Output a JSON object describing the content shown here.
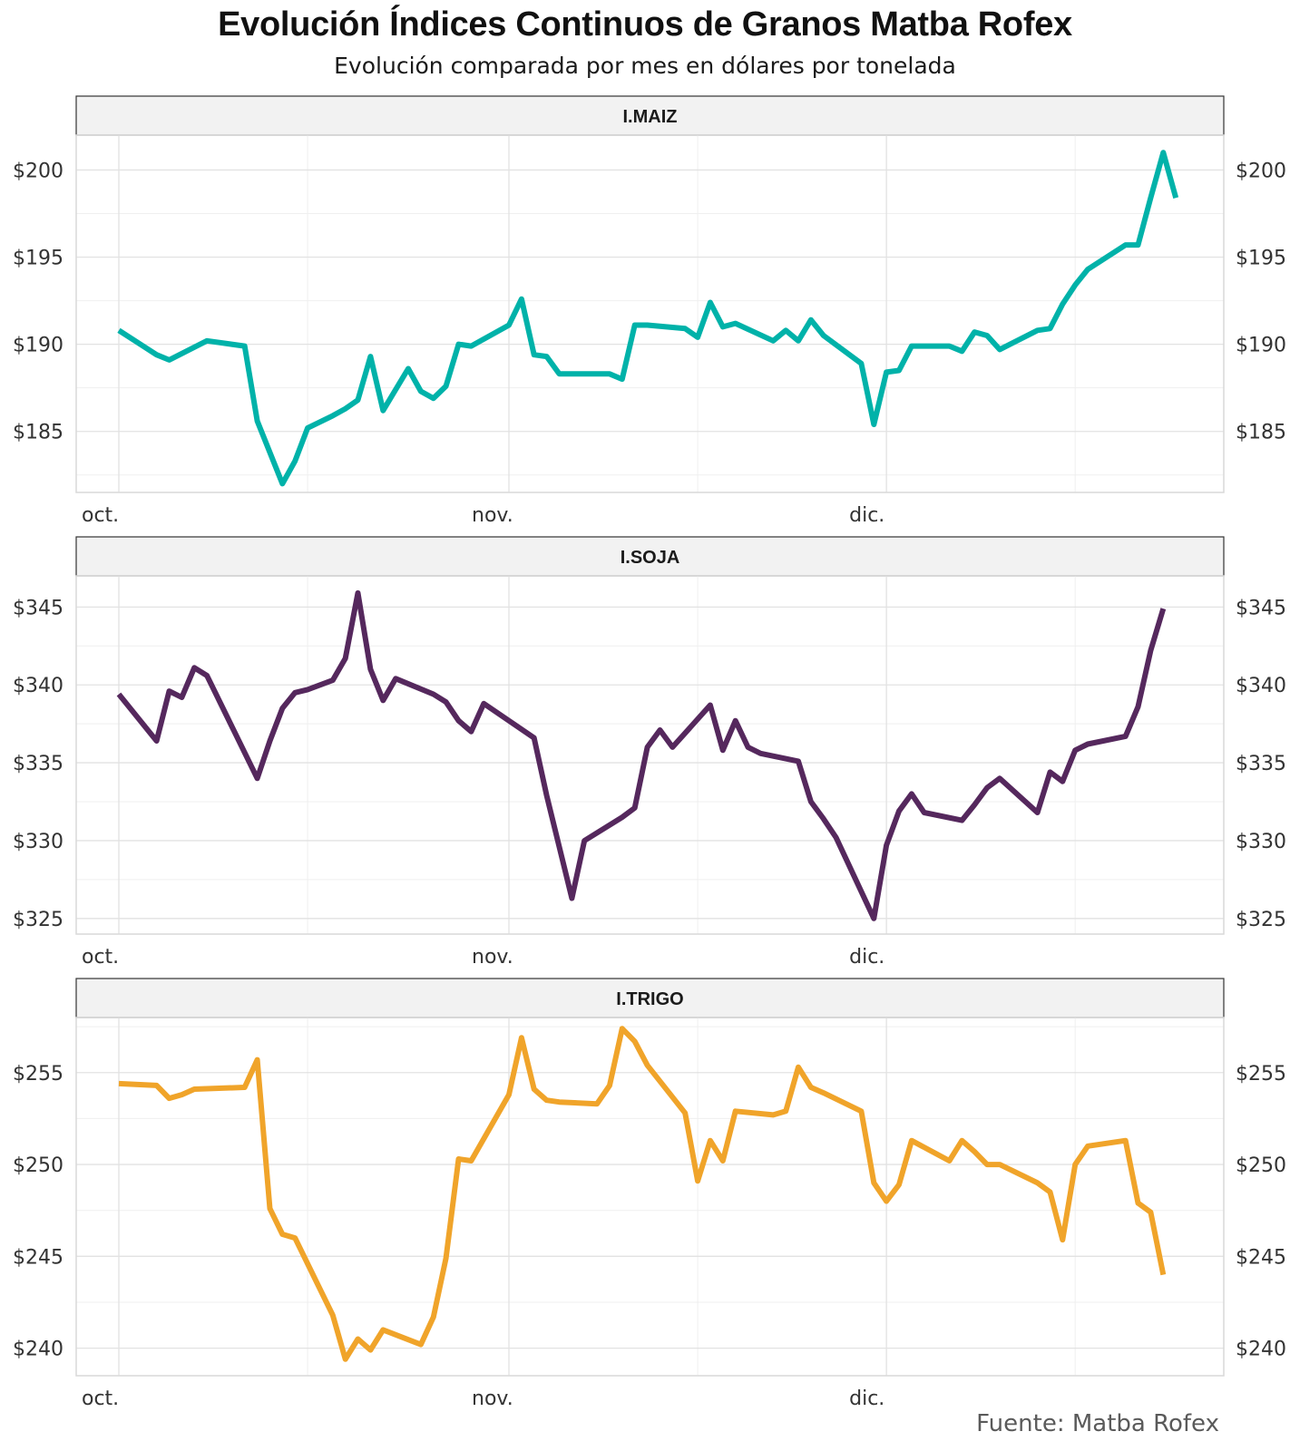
{
  "title": "Evolución Índices Continuos de Granos Matba Rofex",
  "subtitle": "Evolución comparada por mes en dólares por tonelada",
  "source": "Fuente: Matba Rofex",
  "chart_data": [
    {
      "type": "line",
      "panel": "I.MAIZ",
      "color": "#00b2a9",
      "x_labels": [
        "oct.",
        "nov.",
        "dic."
      ],
      "y_ticks": [
        "$185",
        "$190",
        "$195",
        "$200"
      ],
      "y_tick_values": [
        185,
        190,
        195,
        200
      ],
      "ylim": [
        181.5,
        202
      ],
      "x": [
        "2019-10-01",
        "2019-10-04",
        "2019-10-05",
        "2019-10-08",
        "2019-10-11",
        "2019-10-12",
        "2019-10-14",
        "2019-10-15",
        "2019-10-16",
        "2019-10-18",
        "2019-10-19",
        "2019-10-20",
        "2019-10-21",
        "2019-10-22",
        "2019-10-24",
        "2019-10-25",
        "2019-10-26",
        "2019-10-27",
        "2019-10-28",
        "2019-10-29",
        "2019-11-01",
        "2019-11-02",
        "2019-11-03",
        "2019-11-04",
        "2019-11-05",
        "2019-11-08",
        "2019-11-09",
        "2019-11-10",
        "2019-11-11",
        "2019-11-12",
        "2019-11-15",
        "2019-11-16",
        "2019-11-17",
        "2019-11-18",
        "2019-11-19",
        "2019-11-22",
        "2019-11-23",
        "2019-11-24",
        "2019-11-25",
        "2019-11-26",
        "2019-11-29",
        "2019-11-30",
        "2019-12-01",
        "2019-12-02",
        "2019-12-03",
        "2019-12-06",
        "2019-12-07",
        "2019-12-08",
        "2019-12-09",
        "2019-12-10",
        "2019-12-13",
        "2019-12-14",
        "2019-12-15",
        "2019-12-16",
        "2019-12-17",
        "2019-12-20",
        "2019-12-21",
        "2019-12-22"
      ],
      "values": [
        190.8,
        189.4,
        189.1,
        190.2,
        189.9,
        185.6,
        182.0,
        183.3,
        185.2,
        185.9,
        186.3,
        186.8,
        189.3,
        186.2,
        188.6,
        187.3,
        186.9,
        187.6,
        190.0,
        189.9,
        191.1,
        192.6,
        189.4,
        189.3,
        188.3,
        188.3,
        188.3,
        188.0,
        191.1,
        191.1,
        190.9,
        190.4,
        192.4,
        191.0,
        191.2,
        190.2,
        190.8,
        190.2,
        191.4,
        190.5,
        188.9,
        185.4,
        188.4,
        188.5,
        189.9,
        189.9,
        189.6,
        190.7,
        190.5,
        189.7,
        190.8,
        190.9,
        192.3,
        193.4,
        194.3,
        195.7,
        195.7,
        198.4
      ],
      "extra_points": {
        "x": [
          "2019-12-23",
          "2019-12-24"
        ],
        "values": [
          201.0,
          198.4
        ]
      }
    },
    {
      "type": "line",
      "panel": "I.SOJA",
      "color": "#55285d",
      "x_labels": [
        "oct.",
        "nov.",
        "dic."
      ],
      "y_ticks": [
        "$325",
        "$330",
        "$335",
        "$340",
        "$345"
      ],
      "y_tick_values": [
        325,
        330,
        335,
        340,
        345
      ],
      "ylim": [
        324,
        347
      ],
      "x": [
        "2019-10-01",
        "2019-10-04",
        "2019-10-05",
        "2019-10-06",
        "2019-10-07",
        "2019-10-08",
        "2019-10-12",
        "2019-10-13",
        "2019-10-14",
        "2019-10-15",
        "2019-10-16",
        "2019-10-18",
        "2019-10-19",
        "2019-10-20",
        "2019-10-21",
        "2019-10-22",
        "2019-10-23",
        "2019-10-26",
        "2019-10-27",
        "2019-10-28",
        "2019-10-29",
        "2019-10-30",
        "2019-11-03",
        "2019-11-04",
        "2019-11-05",
        "2019-11-06",
        "2019-11-07",
        "2019-11-10",
        "2019-11-11",
        "2019-11-12",
        "2019-11-13",
        "2019-11-14",
        "2019-11-17",
        "2019-11-18",
        "2019-11-19",
        "2019-11-20",
        "2019-11-21",
        "2019-11-24",
        "2019-11-25",
        "2019-11-26",
        "2019-11-27",
        "2019-11-30",
        "2019-12-01",
        "2019-12-02",
        "2019-12-03",
        "2019-12-04",
        "2019-12-07",
        "2019-12-08",
        "2019-12-09",
        "2019-12-10",
        "2019-12-13",
        "2019-12-14",
        "2019-12-15",
        "2019-12-16",
        "2019-12-17",
        "2019-12-20",
        "2019-12-21",
        "2019-12-22",
        "2019-12-23"
      ],
      "values": [
        339.4,
        336.4,
        339.6,
        339.2,
        341.1,
        340.6,
        334.0,
        336.4,
        338.5,
        339.5,
        339.7,
        340.3,
        341.7,
        345.9,
        341.0,
        339.0,
        340.4,
        339.4,
        338.9,
        337.7,
        337.0,
        338.8,
        336.6,
        332.9,
        329.6,
        326.3,
        330.0,
        331.5,
        332.1,
        336.0,
        337.1,
        336.0,
        338.7,
        335.8,
        337.7,
        336.0,
        335.6,
        335.1,
        332.5,
        331.4,
        330.2,
        325.0,
        329.7,
        331.9,
        333.0,
        331.8,
        331.3,
        332.3,
        333.4,
        334.0,
        331.8,
        334.4,
        333.8,
        335.8,
        336.2,
        336.7,
        338.6,
        342.2,
        344.9
      ]
    },
    {
      "type": "line",
      "panel": "I.TRIGO",
      "color": "#f0a42a",
      "x_labels": [
        "oct.",
        "nov.",
        "dic."
      ],
      "y_ticks": [
        "$240",
        "$245",
        "$250",
        "$255"
      ],
      "y_tick_values": [
        240,
        245,
        250,
        255
      ],
      "ylim": [
        238.5,
        258
      ],
      "x": [
        "2019-10-01",
        "2019-10-04",
        "2019-10-05",
        "2019-10-06",
        "2019-10-07",
        "2019-10-11",
        "2019-10-12",
        "2019-10-13",
        "2019-10-14",
        "2019-10-15",
        "2019-10-18",
        "2019-10-19",
        "2019-10-20",
        "2019-10-21",
        "2019-10-22",
        "2019-10-25",
        "2019-10-26",
        "2019-10-27",
        "2019-10-28",
        "2019-10-29",
        "2019-11-01",
        "2019-11-02",
        "2019-11-03",
        "2019-11-04",
        "2019-11-05",
        "2019-11-08",
        "2019-11-09",
        "2019-11-10",
        "2019-11-11",
        "2019-11-12",
        "2019-11-15",
        "2019-11-16",
        "2019-11-17",
        "2019-11-18",
        "2019-11-19",
        "2019-11-22",
        "2019-11-23",
        "2019-11-24",
        "2019-11-25",
        "2019-11-26",
        "2019-11-29",
        "2019-11-30",
        "2019-12-01",
        "2019-12-02",
        "2019-12-03",
        "2019-12-06",
        "2019-12-07",
        "2019-12-08",
        "2019-12-09",
        "2019-12-10",
        "2019-12-13",
        "2019-12-14",
        "2019-12-15",
        "2019-12-16",
        "2019-12-17",
        "2019-12-20",
        "2019-12-21",
        "2019-12-22",
        "2019-12-23"
      ],
      "values": [
        254.4,
        254.3,
        253.6,
        253.8,
        254.1,
        254.2,
        255.7,
        247.6,
        246.2,
        246.0,
        241.8,
        239.4,
        240.5,
        239.9,
        241.0,
        240.2,
        241.7,
        244.9,
        250.3,
        250.2,
        253.8,
        256.9,
        254.1,
        253.5,
        253.4,
        253.3,
        254.3,
        257.4,
        256.7,
        255.4,
        252.8,
        249.1,
        251.3,
        250.2,
        252.9,
        252.7,
        252.9,
        255.3,
        254.2,
        253.9,
        252.9,
        249.0,
        248.0,
        248.9,
        251.3,
        250.2,
        251.3,
        250.7,
        250.0,
        250.0,
        249.0,
        248.5,
        245.9,
        250.0,
        251.0,
        251.3,
        247.9,
        247.4,
        244.0
      ]
    }
  ]
}
